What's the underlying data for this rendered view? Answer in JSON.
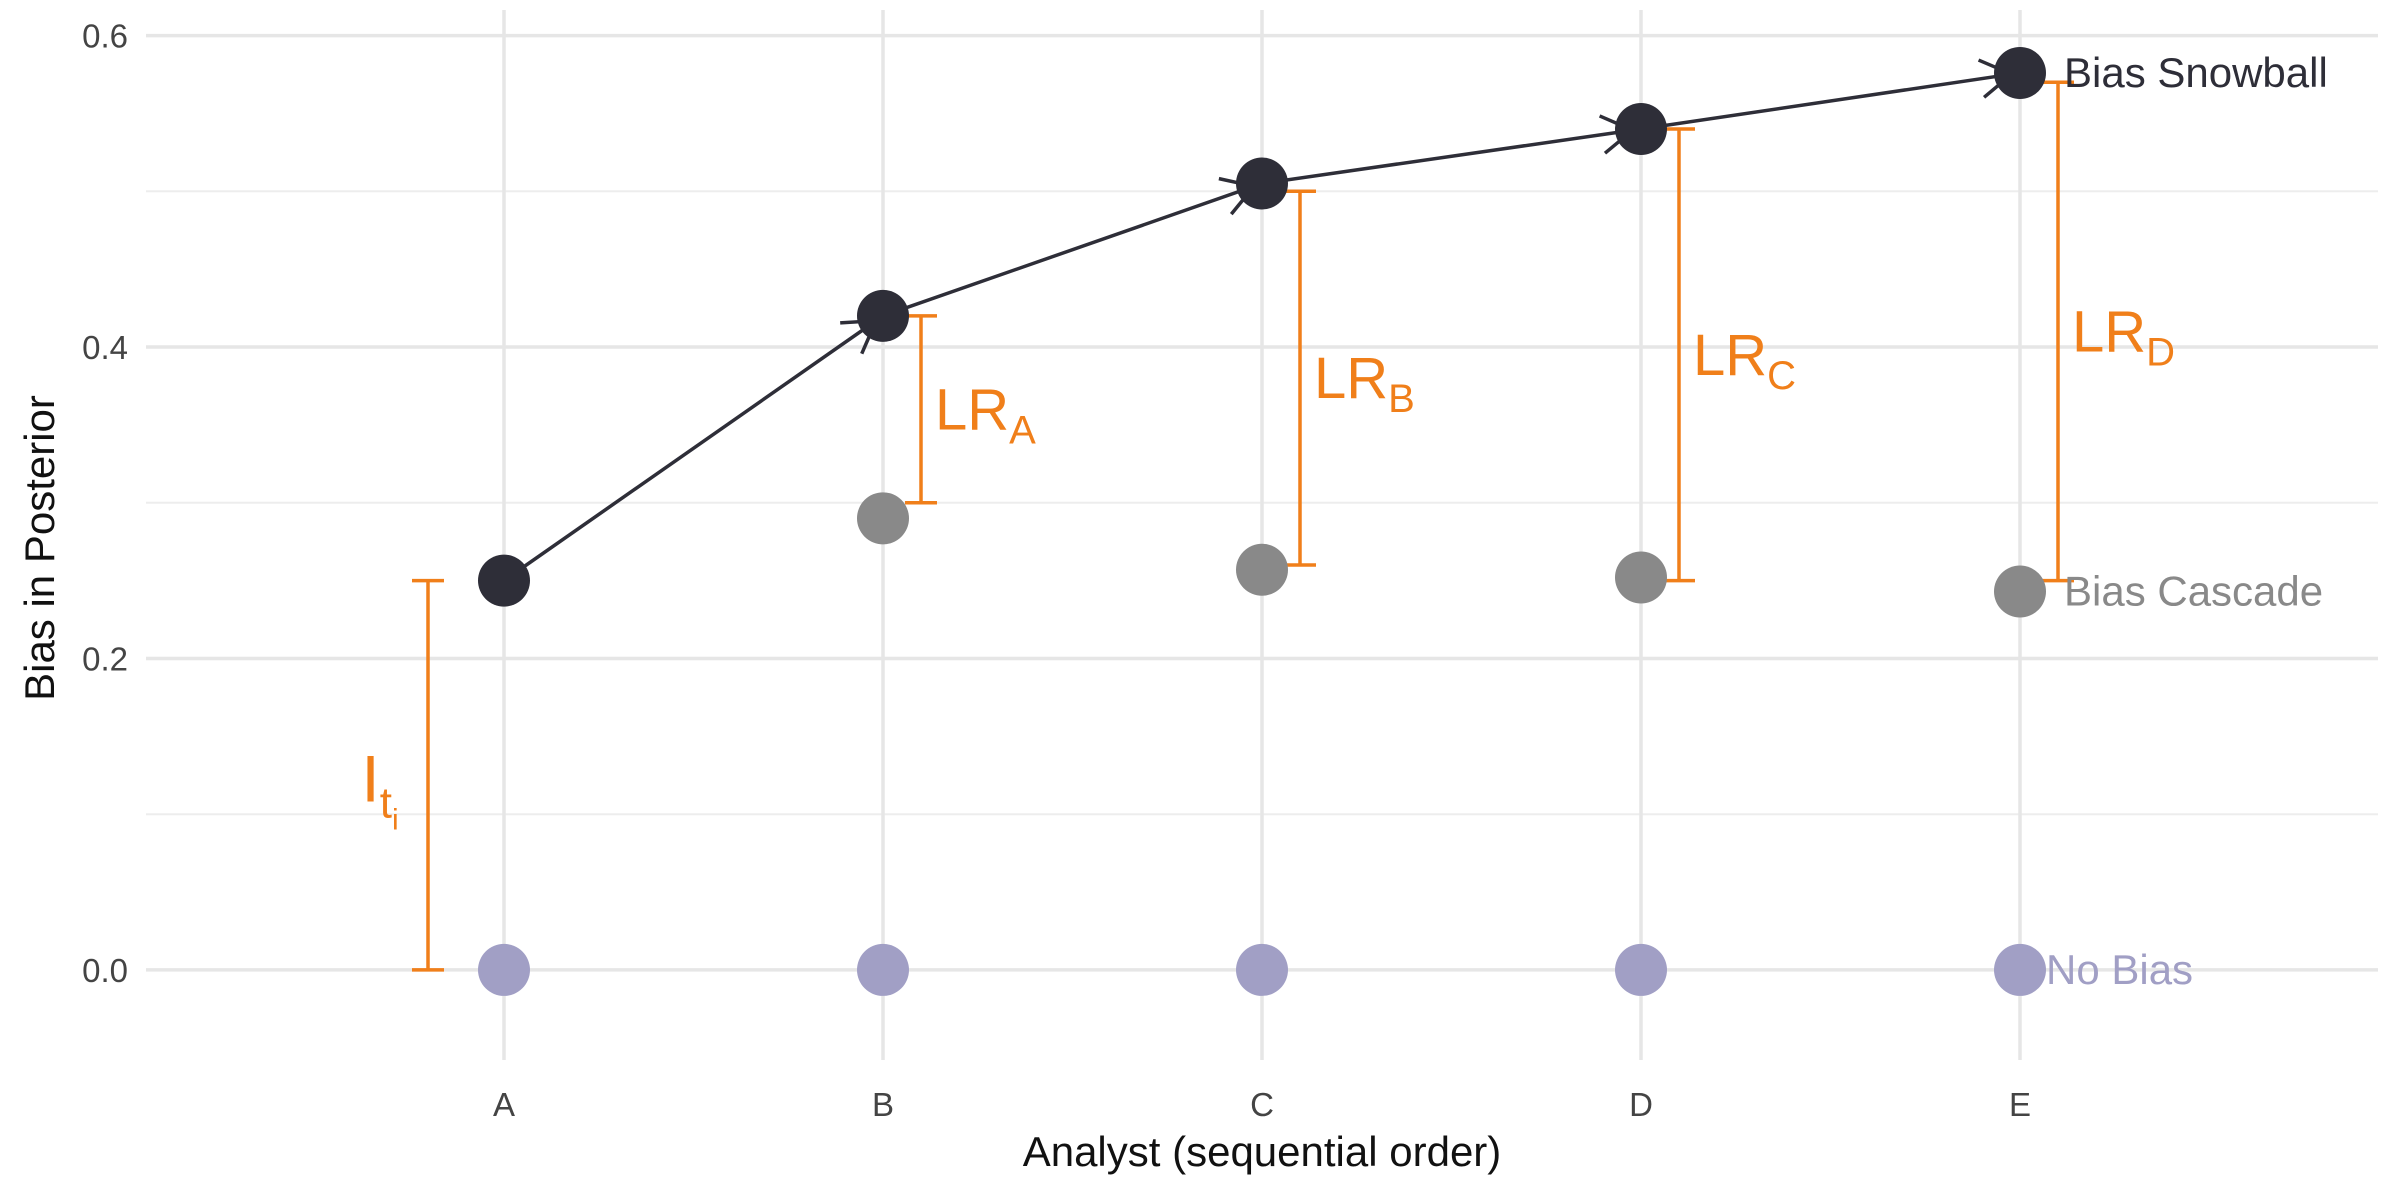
{
  "chart_data": {
    "type": "scatter",
    "title": "",
    "xlabel": "Analyst (sequential order)",
    "ylabel": "Bias in Posterior",
    "categories": [
      "A",
      "B",
      "C",
      "D",
      "E"
    ],
    "ylim": [
      -0.045,
      0.61
    ],
    "yticks": [
      0.0,
      0.2,
      0.4,
      0.6
    ],
    "ytick_labels": [
      "0.0",
      "0.2",
      "0.4",
      "0.6"
    ],
    "grid": true,
    "series": [
      {
        "name": "Bias Snowball",
        "values": [
          0.25,
          0.42,
          0.505,
          0.54,
          0.576
        ],
        "color": "#2e2e38",
        "connected": true
      },
      {
        "name": "Bias Cascade",
        "values": [
          null,
          0.29,
          0.257,
          0.252,
          0.243
        ],
        "color": "#898989",
        "connected": false
      },
      {
        "name": "No Bias",
        "values": [
          0.0,
          0.0,
          0.0,
          0.0,
          0.0
        ],
        "color": "#a19fc5",
        "connected": false
      }
    ],
    "brackets": [
      {
        "label": "I",
        "sub": "t",
        "subsub": "i",
        "category": "A",
        "side": "left",
        "from": 0.0,
        "to": 0.25
      },
      {
        "label": "LR",
        "sub": "A",
        "category": "B",
        "side": "right",
        "from": 0.3,
        "to": 0.42
      },
      {
        "label": "LR",
        "sub": "B",
        "category": "C",
        "side": "right",
        "from": 0.26,
        "to": 0.5
      },
      {
        "label": "LR",
        "sub": "C",
        "category": "D",
        "side": "right",
        "from": 0.25,
        "to": 0.54
      },
      {
        "label": "LR",
        "sub": "D",
        "category": "E",
        "side": "right",
        "from": 0.25,
        "to": 0.57
      }
    ],
    "bracket_color": "#f07f1a"
  }
}
